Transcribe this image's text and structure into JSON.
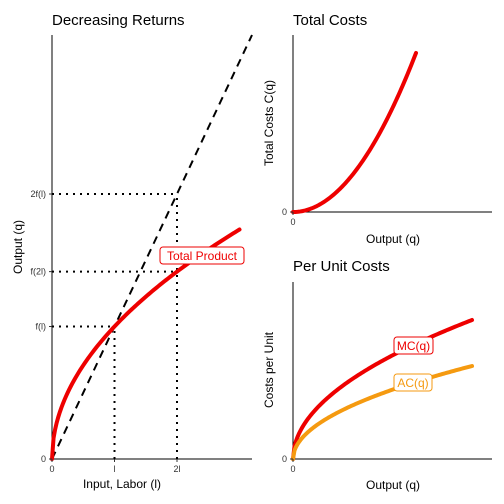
{
  "colors": {
    "red": "#ee0000",
    "orange": "#f59a10",
    "black": "#000000"
  },
  "chart_data": [
    {
      "type": "line",
      "title": "Decreasing Returns",
      "xlabel": "Input, Labor (l)",
      "ylabel": "Output (q)",
      "x_tick_labels": [
        "0",
        "l",
        "2l"
      ],
      "y_tick_labels": [
        "0",
        "f(l)",
        "f(2l)",
        "2f(l)"
      ],
      "xlim": [
        0,
        3.2
      ],
      "ylim": [
        0,
        3.2
      ],
      "series": [
        {
          "name": "Total Product",
          "function": "sqrt",
          "x_range": [
            0,
            3.0
          ],
          "color": "#ee0000",
          "style": "solid"
        },
        {
          "function": "linear",
          "x_range": [
            0,
            3.2
          ],
          "color": "#000000",
          "style": "dashed"
        }
      ],
      "reference_lines": [
        {
          "x": 1,
          "y": 1
        },
        {
          "x": 2,
          "y": 1.414
        },
        {
          "x": 2,
          "y": 2
        }
      ]
    },
    {
      "type": "line",
      "title": "Total Costs",
      "xlabel": "Output (q)",
      "ylabel": "Total Costs C(q)",
      "x_tick_labels": [
        "0"
      ],
      "y_tick_labels": [
        "0"
      ],
      "series": [
        {
          "function": "q^2",
          "x_range": [
            0,
            1.0
          ],
          "color": "#ee0000"
        }
      ]
    },
    {
      "type": "line",
      "title": "Per Unit Costs",
      "xlabel": "Output (q)",
      "ylabel": "Costs per Unit",
      "x_tick_labels": [
        "0"
      ],
      "y_tick_labels": [
        "0"
      ],
      "series": [
        {
          "name": "MC(q)",
          "function": "c*sqrt(q)",
          "x_range": [
            0,
            1.0
          ],
          "color": "#ee0000"
        },
        {
          "name": "AC(q)",
          "function": "c*sqrt(q)",
          "x_range": [
            0,
            1.0
          ],
          "color": "#f59a10"
        }
      ]
    }
  ]
}
